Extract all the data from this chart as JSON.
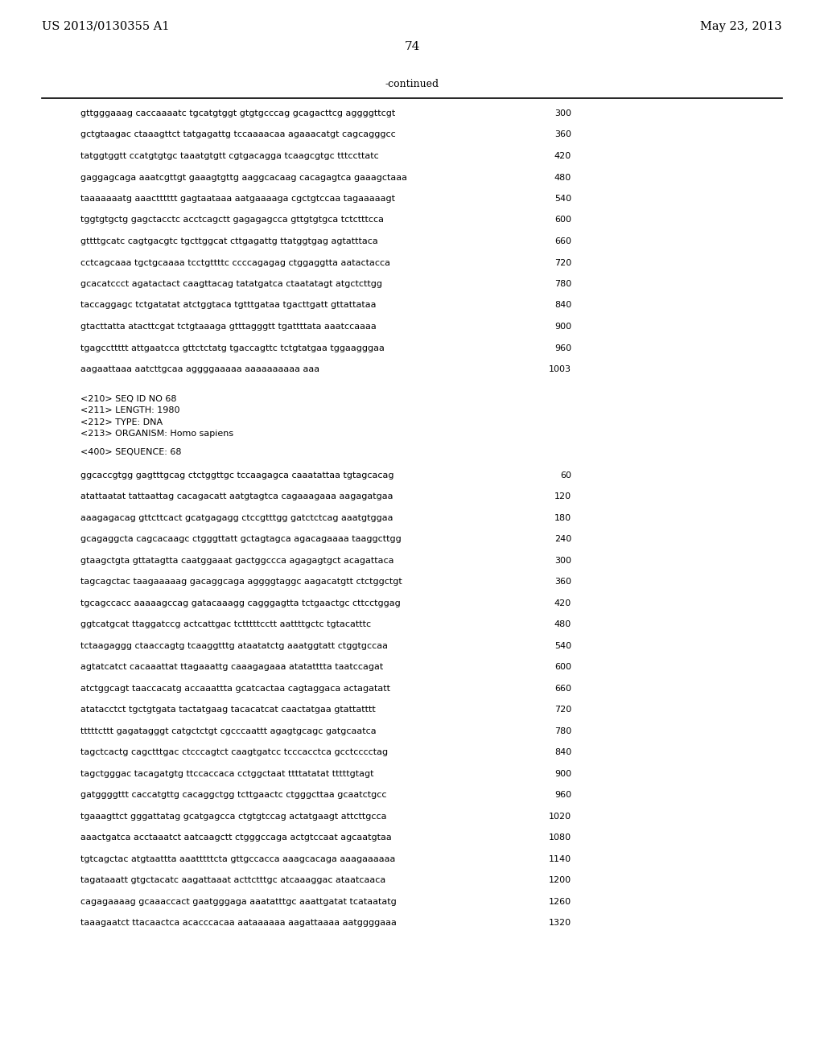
{
  "background_color": "#ffffff",
  "header_left": "US 2013/0130355 A1",
  "header_right": "May 23, 2013",
  "page_number": "74",
  "continued_label": "-continued",
  "sequence_lines_part1": [
    [
      "gttgggaaag caccaaaatc tgcatgtggt gtgtgcccag gcagacttcg aggggttcgt",
      "300"
    ],
    [
      "gctgtaagac ctaaagttct tatgagattg tccaaaacaa agaaacatgt cagcagggcc",
      "360"
    ],
    [
      "tatggtggtt ccatgtgtgc taaatgtgtt cgtgacagga tcaagcgtgc tttccttatc",
      "420"
    ],
    [
      "gaggagcaga aaatcgttgt gaaagtgttg aaggcacaag cacagagtca gaaagctaaa",
      "480"
    ],
    [
      "taaaaaaatg aaactttttt gagtaataaa aatgaaaaga cgctgtccaa tagaaaaagt",
      "540"
    ],
    [
      "tggtgtgctg gagctacctc acctcagctt gagagagcca gttgtgtgca tctctttcca",
      "600"
    ],
    [
      "gttttgcatc cagtgacgtc tgcttggcat cttgagattg ttatggtgag agtatttaca",
      "660"
    ],
    [
      "cctcagcaaa tgctgcaaaa tcctgttttc ccccagagag ctggaggtta aatactacca",
      "720"
    ],
    [
      "gcacatccct agatactact caagttacag tatatgatca ctaatatagt atgctcttgg",
      "780"
    ],
    [
      "taccaggagc tctgatatat atctggtaca tgtttgataa tgacttgatt gttattataa",
      "840"
    ],
    [
      "gtacttatta atacttcgat tctgtaaaga gtttagggtt tgattttata aaatccaaaa",
      "900"
    ],
    [
      "tgagccttttt attgaatcca gttctctatg tgaccagttc tctgtatgaa tggaagggaa",
      "960"
    ],
    [
      "aagaattaaa aatcttgcaa aggggaaaaa aaaaaaaaaa aaa",
      "1003"
    ]
  ],
  "metadata_lines": [
    "<210> SEQ ID NO 68",
    "<211> LENGTH: 1980",
    "<212> TYPE: DNA",
    "<213> ORGANISM: Homo sapiens",
    "",
    "<400> SEQUENCE: 68"
  ],
  "sequence_lines_part2": [
    [
      "ggcaccgtgg gagtttgcag ctctggttgc tccaagagca caaatattaa tgtagcacag",
      "60"
    ],
    [
      "atattaatat tattaattag cacagacatt aatgtagtca cagaaagaaa aagagatgaa",
      "120"
    ],
    [
      "aaagagacag gttcttcact gcatgagagg ctccgtttgg gatctctcag aaatgtggaa",
      "180"
    ],
    [
      "gcagaggcta cagcacaagc ctgggttatt gctagtagca agacagaaaa taaggcttgg",
      "240"
    ],
    [
      "gtaagctgta gttatagtta caatggaaat gactggccca agagagtgct acagattaca",
      "300"
    ],
    [
      "tagcagctac taagaaaaag gacaggcaga aggggtaggc aagacatgtt ctctggctgt",
      "360"
    ],
    [
      "tgcagccacc aaaaagccag gatacaaagg cagggagtta tctgaactgc cttcctggag",
      "420"
    ],
    [
      "ggtcatgcat ttaggatccg actcattgac tctttttcctt aattttgctc tgtacatttc",
      "480"
    ],
    [
      "tctaagaggg ctaaccagtg tcaaggtttg ataatatctg aaatggtatt ctggtgccaa",
      "540"
    ],
    [
      "agtatcatct cacaaattat ttagaaattg caaagagaaa atatatttta taatccagat",
      "600"
    ],
    [
      "atctggcagt taaccacatg accaaattta gcatcactaa cagtaggaca actagatatt",
      "660"
    ],
    [
      "atatacctct tgctgtgata tactatgaag tacacatcat caactatgaa gtattatttt",
      "720"
    ],
    [
      "tttttcttt gagatagggt catgctctgt cgcccaattt agagtgcagc gatgcaatca",
      "780"
    ],
    [
      "tagctcactg cagctttgac ctcccagtct caagtgatcc tcccacctca gcctcccctag",
      "840"
    ],
    [
      "tagctgggac tacagatgtg ttccaccaca cctggctaat ttttatatat tttttgtagt",
      "900"
    ],
    [
      "gatggggttt caccatgttg cacaggctgg tcttgaactc ctgggcttaa gcaatctgcc",
      "960"
    ],
    [
      "tgaaagttct gggattatag gcatgagcca ctgtgtccag actatgaagt attcttgcca",
      "1020"
    ],
    [
      "aaactgatca acctaaatct aatcaagctt ctgggccaga actgtccaat agcaatgtaa",
      "1080"
    ],
    [
      "tgtcagctac atgtaattta aaatttttcta gttgccacca aaagcacaga aaagaaaaaa",
      "1140"
    ],
    [
      "tagataaatt gtgctacatc aagattaaat acttctttgc atcaaaggac ataatcaaca",
      "1200"
    ],
    [
      "cagagaaaag gcaaaccact gaatgggaga aaatatttgc aaattgatat tcataatatg",
      "1260"
    ],
    [
      "taaagaatct ttacaactca acacccacaa aataaaaaa aagattaaaa aatggggaaa",
      "1320"
    ]
  ]
}
